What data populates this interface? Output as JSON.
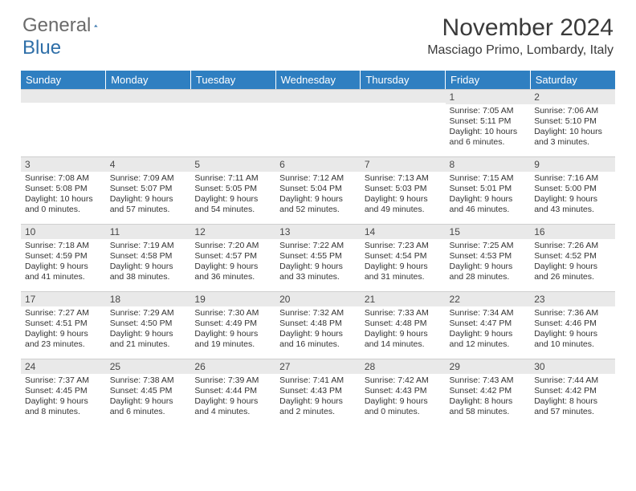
{
  "brand": {
    "part1": "General",
    "part2": "Blue"
  },
  "title": "November 2024",
  "location": "Masciago Primo, Lombardy, Italy",
  "columns": [
    "Sunday",
    "Monday",
    "Tuesday",
    "Wednesday",
    "Thursday",
    "Friday",
    "Saturday"
  ],
  "colors": {
    "header_bg": "#2f7fc1",
    "header_text": "#ffffff",
    "daynum_bg": "#e9e9e9",
    "text": "#333333",
    "brand_gray": "#6a6a6a",
    "brand_blue": "#2f6fa8"
  },
  "weeks": [
    [
      null,
      null,
      null,
      null,
      null,
      {
        "n": "1",
        "sr": "7:05 AM",
        "ss": "5:11 PM",
        "dl": "10 hours and 6 minutes."
      },
      {
        "n": "2",
        "sr": "7:06 AM",
        "ss": "5:10 PM",
        "dl": "10 hours and 3 minutes."
      }
    ],
    [
      {
        "n": "3",
        "sr": "7:08 AM",
        "ss": "5:08 PM",
        "dl": "10 hours and 0 minutes."
      },
      {
        "n": "4",
        "sr": "7:09 AM",
        "ss": "5:07 PM",
        "dl": "9 hours and 57 minutes."
      },
      {
        "n": "5",
        "sr": "7:11 AM",
        "ss": "5:05 PM",
        "dl": "9 hours and 54 minutes."
      },
      {
        "n": "6",
        "sr": "7:12 AM",
        "ss": "5:04 PM",
        "dl": "9 hours and 52 minutes."
      },
      {
        "n": "7",
        "sr": "7:13 AM",
        "ss": "5:03 PM",
        "dl": "9 hours and 49 minutes."
      },
      {
        "n": "8",
        "sr": "7:15 AM",
        "ss": "5:01 PM",
        "dl": "9 hours and 46 minutes."
      },
      {
        "n": "9",
        "sr": "7:16 AM",
        "ss": "5:00 PM",
        "dl": "9 hours and 43 minutes."
      }
    ],
    [
      {
        "n": "10",
        "sr": "7:18 AM",
        "ss": "4:59 PM",
        "dl": "9 hours and 41 minutes."
      },
      {
        "n": "11",
        "sr": "7:19 AM",
        "ss": "4:58 PM",
        "dl": "9 hours and 38 minutes."
      },
      {
        "n": "12",
        "sr": "7:20 AM",
        "ss": "4:57 PM",
        "dl": "9 hours and 36 minutes."
      },
      {
        "n": "13",
        "sr": "7:22 AM",
        "ss": "4:55 PM",
        "dl": "9 hours and 33 minutes."
      },
      {
        "n": "14",
        "sr": "7:23 AM",
        "ss": "4:54 PM",
        "dl": "9 hours and 31 minutes."
      },
      {
        "n": "15",
        "sr": "7:25 AM",
        "ss": "4:53 PM",
        "dl": "9 hours and 28 minutes."
      },
      {
        "n": "16",
        "sr": "7:26 AM",
        "ss": "4:52 PM",
        "dl": "9 hours and 26 minutes."
      }
    ],
    [
      {
        "n": "17",
        "sr": "7:27 AM",
        "ss": "4:51 PM",
        "dl": "9 hours and 23 minutes."
      },
      {
        "n": "18",
        "sr": "7:29 AM",
        "ss": "4:50 PM",
        "dl": "9 hours and 21 minutes."
      },
      {
        "n": "19",
        "sr": "7:30 AM",
        "ss": "4:49 PM",
        "dl": "9 hours and 19 minutes."
      },
      {
        "n": "20",
        "sr": "7:32 AM",
        "ss": "4:48 PM",
        "dl": "9 hours and 16 minutes."
      },
      {
        "n": "21",
        "sr": "7:33 AM",
        "ss": "4:48 PM",
        "dl": "9 hours and 14 minutes."
      },
      {
        "n": "22",
        "sr": "7:34 AM",
        "ss": "4:47 PM",
        "dl": "9 hours and 12 minutes."
      },
      {
        "n": "23",
        "sr": "7:36 AM",
        "ss": "4:46 PM",
        "dl": "9 hours and 10 minutes."
      }
    ],
    [
      {
        "n": "24",
        "sr": "7:37 AM",
        "ss": "4:45 PM",
        "dl": "9 hours and 8 minutes."
      },
      {
        "n": "25",
        "sr": "7:38 AM",
        "ss": "4:45 PM",
        "dl": "9 hours and 6 minutes."
      },
      {
        "n": "26",
        "sr": "7:39 AM",
        "ss": "4:44 PM",
        "dl": "9 hours and 4 minutes."
      },
      {
        "n": "27",
        "sr": "7:41 AM",
        "ss": "4:43 PM",
        "dl": "9 hours and 2 minutes."
      },
      {
        "n": "28",
        "sr": "7:42 AM",
        "ss": "4:43 PM",
        "dl": "9 hours and 0 minutes."
      },
      {
        "n": "29",
        "sr": "7:43 AM",
        "ss": "4:42 PM",
        "dl": "8 hours and 58 minutes."
      },
      {
        "n": "30",
        "sr": "7:44 AM",
        "ss": "4:42 PM",
        "dl": "8 hours and 57 minutes."
      }
    ]
  ],
  "labels": {
    "sunrise": "Sunrise:",
    "sunset": "Sunset:",
    "daylight": "Daylight:"
  }
}
